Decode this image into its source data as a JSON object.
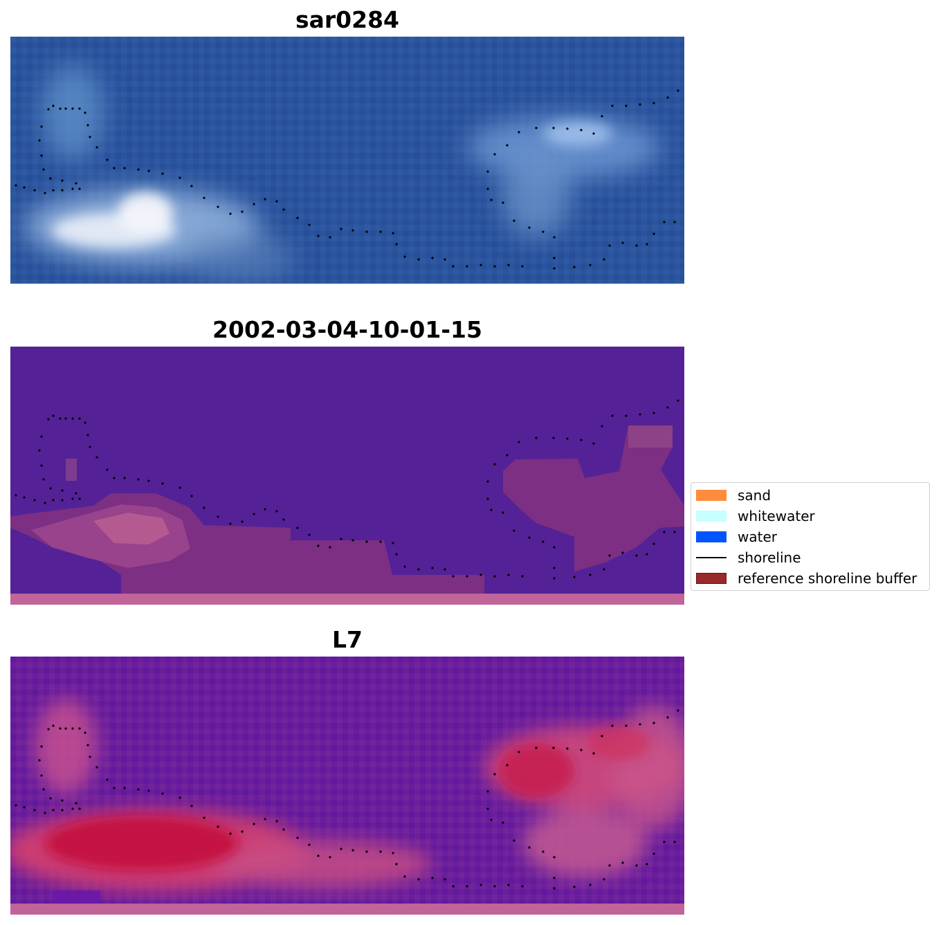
{
  "panels": [
    {
      "title": "sar0284"
    },
    {
      "title": "2002-03-04-10-01-15"
    },
    {
      "title": "L7"
    }
  ],
  "legend": {
    "items": [
      {
        "label": "sand",
        "type": "patch",
        "color": "#ff8c3a",
        "edge": "none"
      },
      {
        "label": "whitewater",
        "type": "patch",
        "color": "#c8ffff",
        "edge": "none"
      },
      {
        "label": "water",
        "type": "patch",
        "color": "#0055ff",
        "edge": "none"
      },
      {
        "label": "shoreline",
        "type": "line",
        "color": "#000000"
      },
      {
        "label": "reference shoreline buffer",
        "type": "patch",
        "color": "#9a2a2a",
        "edge": "#6b0f0f"
      }
    ]
  }
}
